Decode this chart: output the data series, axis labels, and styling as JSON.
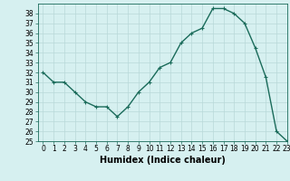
{
  "x": [
    0,
    1,
    2,
    3,
    4,
    5,
    6,
    7,
    8,
    9,
    10,
    11,
    12,
    13,
    14,
    15,
    16,
    17,
    18,
    19,
    20,
    21,
    22,
    23
  ],
  "y": [
    32,
    31,
    31,
    30,
    29,
    28.5,
    28.5,
    27.5,
    28.5,
    30,
    31,
    32.5,
    33,
    35,
    36,
    36.5,
    38.5,
    38.5,
    38,
    37,
    34.5,
    31.5,
    26,
    25
  ],
  "line_color": "#1a6b5a",
  "marker": "+",
  "marker_size": 3,
  "bg_color": "#d6f0f0",
  "grid_color": "#b8d8d8",
  "xlabel": "Humidex (Indice chaleur)",
  "ylim": [
    25,
    39
  ],
  "xlim": [
    -0.5,
    23
  ],
  "yticks": [
    25,
    26,
    27,
    28,
    29,
    30,
    31,
    32,
    33,
    34,
    35,
    36,
    37,
    38
  ],
  "xticks": [
    0,
    1,
    2,
    3,
    4,
    5,
    6,
    7,
    8,
    9,
    10,
    11,
    12,
    13,
    14,
    15,
    16,
    17,
    18,
    19,
    20,
    21,
    22,
    23
  ],
  "tick_label_fontsize": 5.5,
  "xlabel_fontsize": 7,
  "line_width": 1.0,
  "marker_edge_width": 0.8
}
